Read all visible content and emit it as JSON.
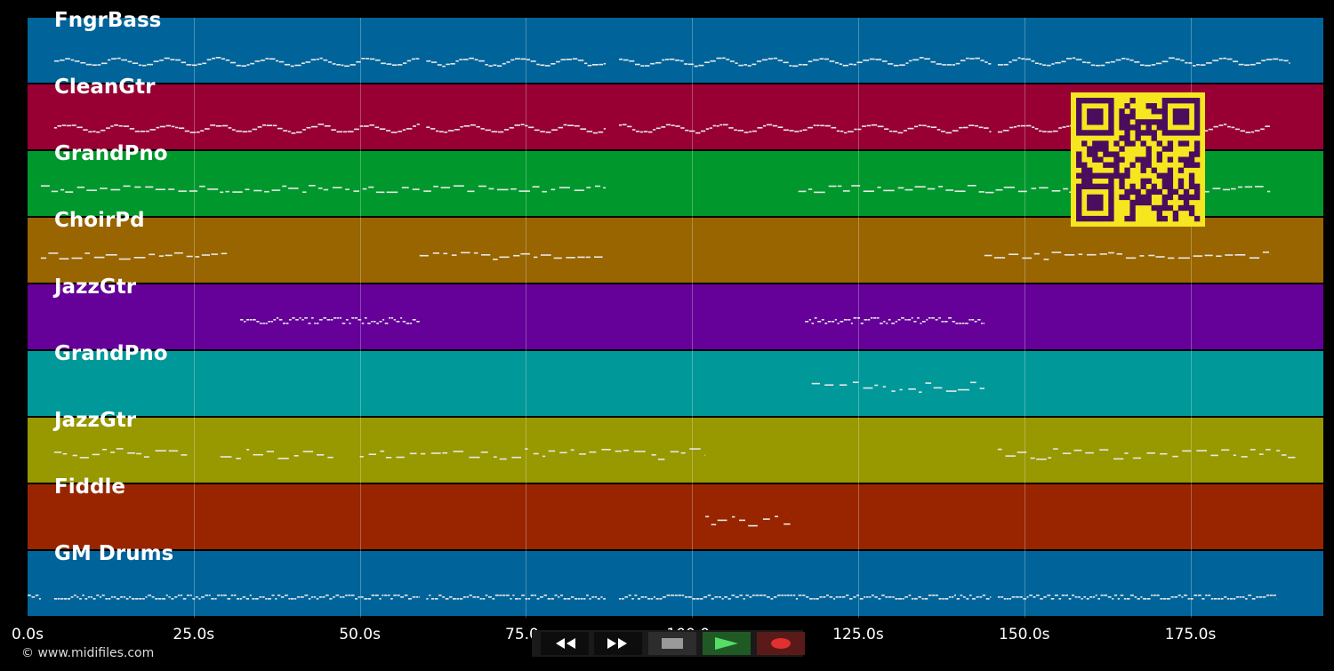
{
  "app": {
    "copyright": "© www.midifiles.com"
  },
  "colors": {
    "background": "#000000",
    "grid": "rgba(255,255,255,0.28)",
    "note": "#e8e8e8",
    "qr_fg": "#4a0d5e",
    "qr_bg": "#f5e620"
  },
  "timeline": {
    "max_seconds": 195,
    "ticks": [
      {
        "label": "0.0s",
        "value": 0
      },
      {
        "label": "25.0s",
        "value": 25
      },
      {
        "label": "50.0s",
        "value": 50
      },
      {
        "label": "75.0s",
        "value": 75
      },
      {
        "label": "100.0s",
        "value": 100
      },
      {
        "label": "125.0s",
        "value": 125
      },
      {
        "label": "150.0s",
        "value": 150
      },
      {
        "label": "175.0s",
        "value": 175
      }
    ]
  },
  "tracks": [
    {
      "name": "FngrBass",
      "color": "#00649a",
      "style": "wave",
      "segments": [
        [
          4,
          59
        ],
        [
          60,
          87
        ],
        [
          89,
          145
        ],
        [
          146,
          190
        ]
      ]
    },
    {
      "name": "CleanGtr",
      "color": "#980034",
      "style": "wave",
      "segments": [
        [
          4,
          59
        ],
        [
          60,
          87
        ],
        [
          89,
          145
        ],
        [
          146,
          187
        ]
      ]
    },
    {
      "name": "GrandPno",
      "color": "#00982c",
      "style": "dash",
      "segments": [
        [
          2,
          87
        ],
        [
          116,
          187
        ]
      ]
    },
    {
      "name": "ChoirPd",
      "color": "#986500",
      "style": "dash",
      "segments": [
        [
          2,
          30
        ],
        [
          59,
          87
        ],
        [
          144,
          187
        ]
      ]
    },
    {
      "name": "JazzGtr",
      "color": "#650098",
      "style": "dense",
      "segments": [
        [
          32,
          59
        ],
        [
          117,
          144
        ]
      ]
    },
    {
      "name": "GrandPno",
      "color": "#009898",
      "style": "sparse",
      "segments": [
        [
          118,
          144
        ]
      ]
    },
    {
      "name": "JazzGtr",
      "color": "#989800",
      "style": "sparse",
      "segments": [
        [
          4,
          24
        ],
        [
          29,
          46
        ],
        [
          50,
          102
        ],
        [
          146,
          191
        ]
      ]
    },
    {
      "name": "Fiddle",
      "color": "#982500",
      "style": "sparse",
      "segments": [
        [
          102,
          115
        ]
      ]
    },
    {
      "name": "GM Drums",
      "color": "#00649a",
      "style": "drum",
      "segments": [
        [
          0,
          2
        ],
        [
          4,
          59
        ],
        [
          60,
          87
        ],
        [
          89,
          145
        ],
        [
          146,
          188
        ]
      ]
    }
  ],
  "transport": {
    "rewind": {
      "icon": "rewind-icon",
      "color": "#ffffff"
    },
    "forward": {
      "icon": "fast-forward-icon",
      "color": "#ffffff"
    },
    "stop": {
      "icon": "stop-icon",
      "color": "#9a9a9a"
    },
    "play": {
      "icon": "play-icon",
      "color": "#55dd66"
    },
    "record": {
      "icon": "record-icon",
      "color": "#e03030"
    }
  }
}
